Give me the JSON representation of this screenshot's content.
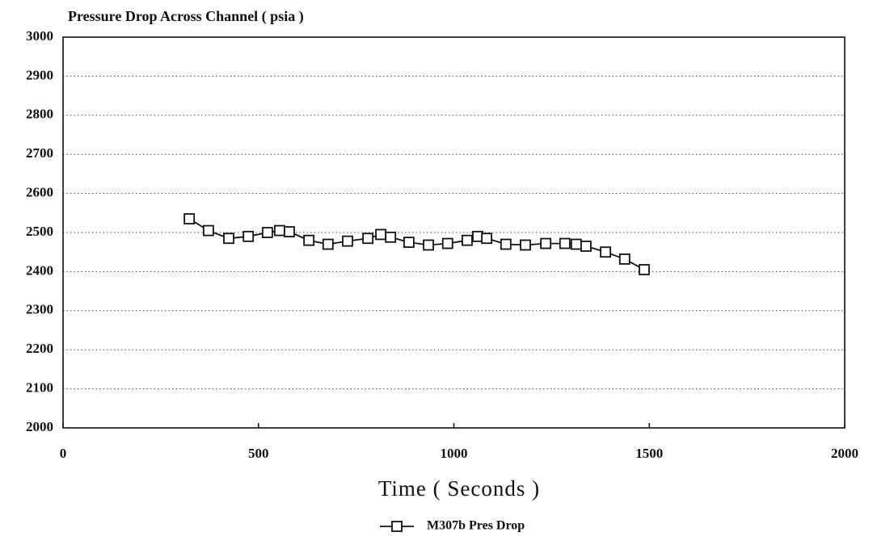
{
  "chart_data": {
    "type": "line",
    "title": "Pressure Drop Across Channel ( psia )",
    "x_label": "Time ( Seconds )",
    "x": [
      323,
      372,
      424,
      474,
      523,
      554,
      579,
      629,
      678,
      728,
      780,
      813,
      838,
      885,
      935,
      984,
      1034,
      1061,
      1084,
      1133,
      1183,
      1235,
      1284,
      1313,
      1338,
      1388,
      1437,
      1487
    ],
    "series": [
      {
        "name": "M307b Pres Drop",
        "color": "#111111",
        "marker": "square",
        "values": [
          2535,
          2505,
          2485,
          2490,
          2500,
          2505,
          2502,
          2480,
          2470,
          2478,
          2485,
          2495,
          2488,
          2475,
          2468,
          2472,
          2480,
          2490,
          2485,
          2470,
          2468,
          2472,
          2472,
          2470,
          2465,
          2450,
          2432,
          2405
        ]
      }
    ],
    "xlim": [
      0,
      2000
    ],
    "xticks": [
      0,
      500,
      1000,
      1500,
      2000
    ],
    "ylim": [
      2000,
      3000
    ],
    "yticks": [
      2000,
      2100,
      2200,
      2300,
      2400,
      2500,
      2600,
      2700,
      2800,
      2900,
      3000
    ],
    "grid": true,
    "legend": "bottom"
  }
}
